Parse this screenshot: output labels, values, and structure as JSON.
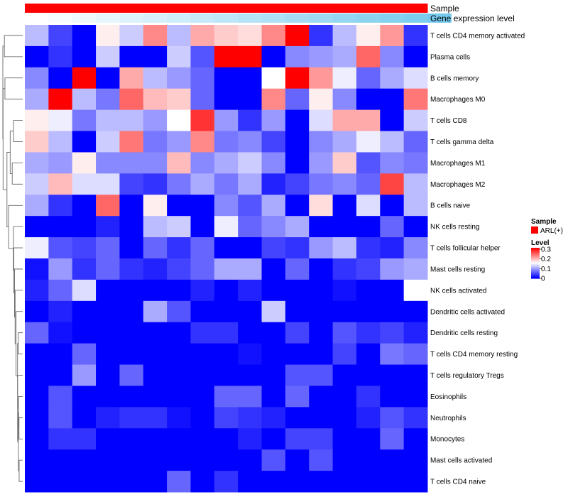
{
  "chart_data": {
    "type": "heatmap",
    "annotations": {
      "sample": {
        "label": "Sample",
        "legend_title": "Sample",
        "legend_entries": [
          {
            "name": "ARL(+)",
            "color": "#ff0000"
          }
        ]
      },
      "gene_expression": {
        "label": "Gene expression level",
        "values": [
          0.0,
          0.05,
          0.1,
          0.15,
          0.2,
          0.25,
          0.3,
          0.35,
          0.4,
          0.45,
          0.5,
          0.55,
          0.6,
          0.65,
          0.7,
          0.75,
          0.8,
          0.85
        ],
        "low_color": "#ffffff",
        "high_color": "#5bc0ea"
      }
    },
    "rows": [
      "T cells CD4 memory activated",
      "Plasma cells",
      "B cells memory",
      "Macrophages M0",
      "T cells CD8",
      "T cells gamma delta",
      "Macrophages M1",
      "Macrophages M2",
      "B cells naive",
      "NK cells resting",
      "T cells follicular helper",
      "Mast cells resting",
      "NK cells activated",
      "Dendritic cells activated",
      "Dendritic cells resting",
      "T cells CD4 memory resting",
      "T cells regulatory  Tregs",
      "Eosinophils",
      "Neutrophils",
      "Monocytes",
      "Mast cells activated",
      "T cells CD4 naive"
    ],
    "values": [
      [
        0.11,
        0.04,
        0.0,
        0.16,
        0.12,
        0.22,
        0.11,
        0.2,
        0.18,
        0.17,
        0.22,
        0.3,
        0.03,
        0.11,
        0.16,
        0.21,
        0.03
      ],
      [
        0.0,
        0.03,
        0.0,
        0.12,
        0.0,
        0.0,
        0.12,
        0.05,
        0.3,
        0.3,
        0.0,
        0.08,
        0.09,
        0.1,
        0.24,
        0.08,
        0.0
      ],
      [
        0.08,
        0.0,
        0.3,
        0.0,
        0.2,
        0.11,
        0.09,
        0.06,
        0.0,
        0.0,
        0.15,
        0.3,
        0.21,
        0.14,
        0.06,
        0.1,
        0.13
      ],
      [
        0.1,
        0.3,
        0.11,
        0.07,
        0.24,
        0.19,
        0.18,
        0.06,
        0.0,
        0.0,
        0.22,
        0.06,
        0.16,
        0.08,
        0.0,
        0.0,
        0.23
      ],
      [
        0.16,
        0.14,
        0.07,
        0.11,
        0.11,
        0.09,
        0.15,
        0.27,
        0.09,
        0.03,
        0.09,
        0.0,
        0.13,
        0.2,
        0.2,
        0.0,
        0.12
      ],
      [
        0.18,
        0.11,
        0.0,
        0.12,
        0.23,
        0.07,
        0.09,
        0.22,
        0.07,
        0.08,
        0.04,
        0.0,
        0.08,
        0.1,
        0.14,
        0.11,
        0.06
      ],
      [
        0.1,
        0.09,
        0.16,
        0.08,
        0.08,
        0.08,
        0.19,
        0.08,
        0.1,
        0.12,
        0.08,
        0.0,
        0.09,
        0.18,
        0.05,
        0.08,
        0.07
      ],
      [
        0.12,
        0.19,
        0.13,
        0.13,
        0.04,
        0.03,
        0.07,
        0.1,
        0.07,
        0.1,
        0.02,
        0.04,
        0.07,
        0.08,
        0.06,
        0.26,
        0.11
      ],
      [
        0.1,
        0.03,
        0.0,
        0.24,
        0.0,
        0.16,
        0.0,
        0.0,
        0.08,
        0.05,
        0.1,
        0.0,
        0.17,
        0.0,
        0.13,
        0.0,
        0.11
      ],
      [
        0.0,
        0.0,
        0.0,
        0.02,
        0.0,
        0.11,
        0.12,
        0.0,
        0.14,
        0.06,
        0.08,
        0.1,
        0.0,
        0.0,
        0.0,
        0.06,
        0.0
      ],
      [
        0.14,
        0.05,
        0.04,
        0.06,
        0.0,
        0.06,
        0.03,
        0.06,
        0.0,
        0.0,
        0.04,
        0.03,
        0.09,
        0.11,
        0.03,
        0.02,
        0.08
      ],
      [
        0.01,
        0.09,
        0.03,
        0.06,
        0.03,
        0.02,
        0.04,
        0.06,
        0.1,
        0.1,
        0.0,
        0.06,
        0.0,
        0.03,
        0.04,
        0.09,
        0.1
      ],
      [
        0.02,
        0.06,
        0.13,
        0.0,
        0.0,
        0.0,
        0.0,
        0.02,
        0.0,
        0.02,
        0.0,
        0.0,
        0.0,
        0.01,
        0.0,
        0.0,
        0.15
      ],
      [
        0.0,
        0.02,
        0.0,
        0.0,
        0.0,
        0.1,
        0.05,
        0.0,
        0.0,
        0.0,
        0.12,
        0.0,
        0.0,
        0.0,
        0.0,
        0.0,
        0.0
      ],
      [
        0.06,
        0.01,
        0.0,
        0.0,
        0.0,
        0.0,
        0.0,
        0.03,
        0.03,
        0.0,
        0.0,
        0.04,
        0.0,
        0.05,
        0.03,
        0.04,
        0.02
      ],
      [
        0.0,
        0.0,
        0.06,
        0.0,
        0.0,
        0.0,
        0.0,
        0.0,
        0.0,
        0.01,
        0.0,
        0.0,
        0.0,
        0.04,
        0.0,
        0.07,
        0.06
      ],
      [
        0.0,
        0.0,
        0.09,
        0.0,
        0.06,
        0.0,
        0.0,
        0.0,
        0.0,
        0.0,
        0.0,
        0.05,
        0.05,
        0.0,
        0.0,
        0.0,
        0.0
      ],
      [
        0.0,
        0.05,
        0.0,
        0.0,
        0.0,
        0.0,
        0.0,
        0.0,
        0.06,
        0.06,
        0.0,
        0.06,
        0.0,
        0.0,
        0.03,
        0.0,
        0.0
      ],
      [
        0.0,
        0.05,
        0.0,
        0.02,
        0.03,
        0.03,
        0.01,
        0.0,
        0.04,
        0.03,
        0.02,
        0.0,
        0.0,
        0.0,
        0.02,
        0.05,
        0.03
      ],
      [
        0.0,
        0.03,
        0.03,
        0.0,
        0.0,
        0.0,
        0.0,
        0.0,
        0.0,
        0.02,
        0.0,
        0.04,
        0.04,
        0.0,
        0.0,
        0.06,
        0.0
      ],
      [
        0.0,
        0.0,
        0.0,
        0.0,
        0.0,
        0.0,
        0.0,
        0.0,
        0.0,
        0.0,
        0.05,
        0.0,
        0.05,
        0.0,
        0.0,
        0.0,
        0.0
      ],
      [
        0.0,
        0.0,
        0.0,
        0.0,
        0.0,
        0.0,
        0.06,
        0.0,
        0.03,
        0.0,
        0.0,
        0.0,
        0.0,
        0.0,
        0.0,
        0.0,
        0.0
      ]
    ],
    "color_scale": {
      "title": "Level",
      "min": 0,
      "max": 0.3,
      "low_color": "#0000ff",
      "mid_color": "#ffffff",
      "high_color": "#ff0000",
      "ticks": [
        "0.3",
        "0.2",
        "0.1",
        "0"
      ]
    },
    "dendrogram": "rows",
    "legend_position": "right"
  }
}
